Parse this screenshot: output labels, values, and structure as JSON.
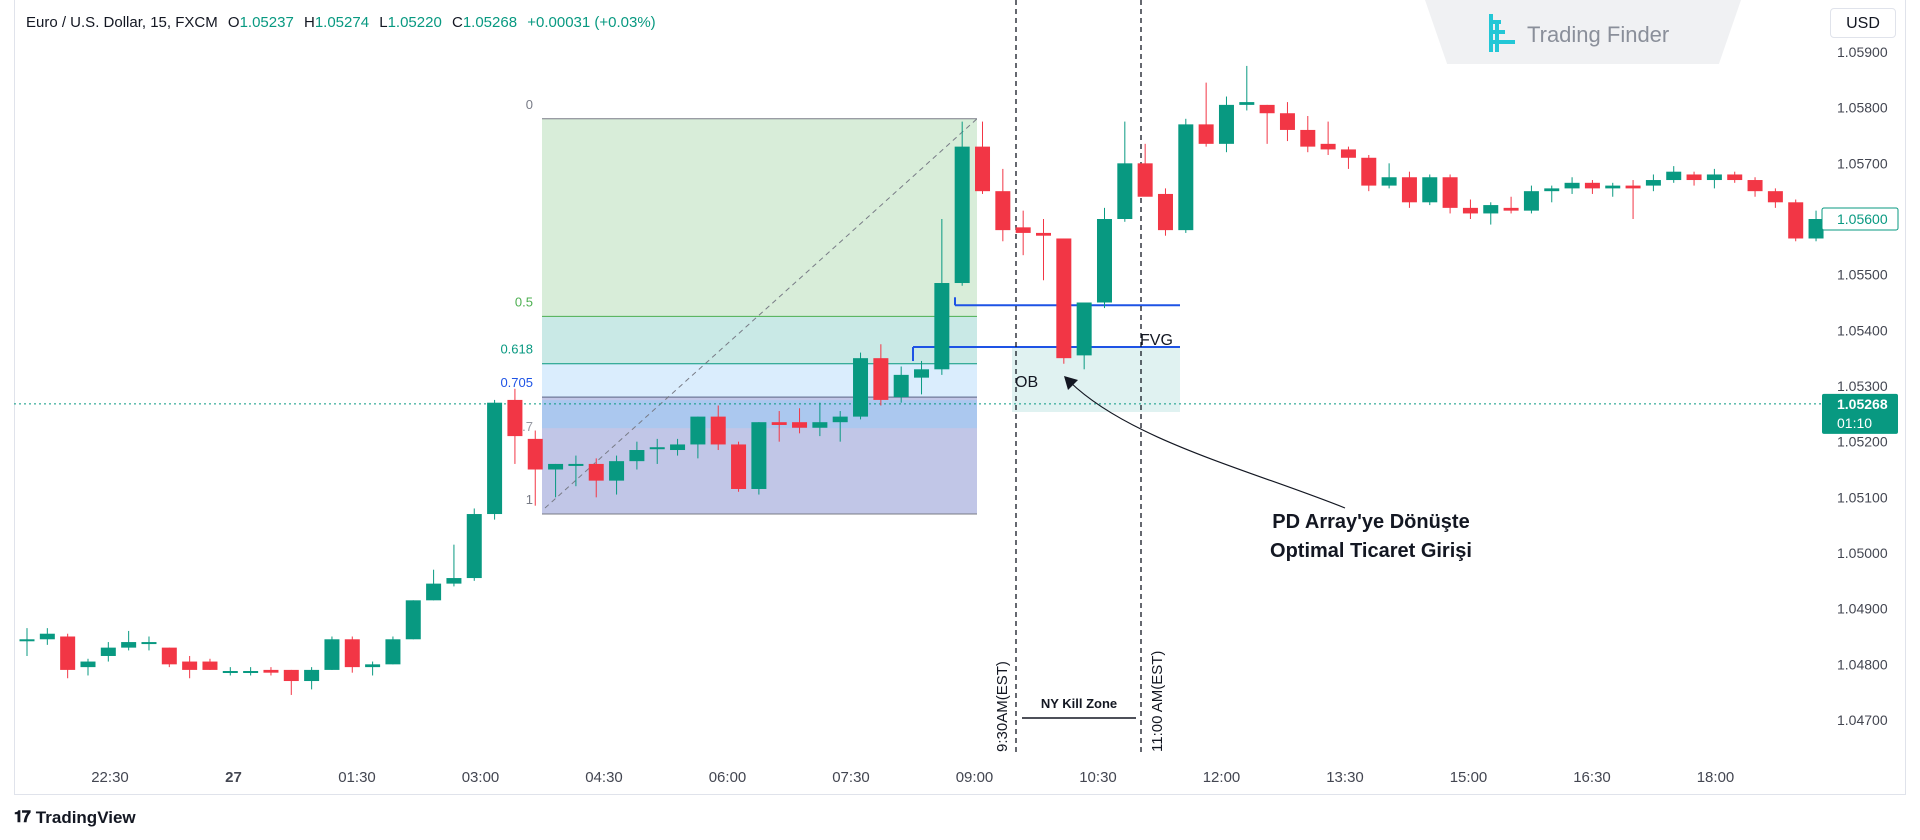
{
  "header": {
    "symbol": "Euro / U.S. Dollar, 15, FXCM",
    "o_label": "O",
    "o_value": "1.05237",
    "h_label": "H",
    "h_value": "1.05274",
    "l_label": "L",
    "l_value": "1.05220",
    "c_label": "C",
    "c_value": "1.05268",
    "change": "+0.00031 (+0.03%)"
  },
  "logo": {
    "text": "Trading Finder"
  },
  "currency_button": "USD",
  "footer": {
    "brand": "TradingView"
  },
  "colors": {
    "up": "#089981",
    "down": "#f23645",
    "fvg": "#1e53e5",
    "text": "#131722",
    "axis": "#434651"
  },
  "chart_data": {
    "type": "candlestick",
    "symbol": "EURUSD",
    "timeframe": "15",
    "ylim": [
      1.0465,
      1.0595
    ],
    "y_ticks": [
      "1.05900",
      "1.05800",
      "1.05700",
      "1.05600",
      "1.05500",
      "1.05400",
      "1.05300",
      "1.05200",
      "1.05100",
      "1.05000",
      "1.04900",
      "1.04800",
      "1.04700"
    ],
    "x_ticks": [
      "22:30",
      "27",
      "01:30",
      "03:00",
      "04:30",
      "06:00",
      "07:30",
      "09:00",
      "10:30",
      "12:00",
      "13:30",
      "15:00",
      "16:30",
      "18:00"
    ],
    "last_price": "1.05268",
    "countdown": "01:10",
    "marked_price": "1.05600",
    "candles": [
      {
        "o": 1.04845,
        "h": 1.04865,
        "l": 1.04815,
        "c": 1.04845
      },
      {
        "o": 1.04845,
        "h": 1.04865,
        "l": 1.04835,
        "c": 1.04855
      },
      {
        "o": 1.0485,
        "h": 1.04855,
        "l": 1.04775,
        "c": 1.0479
      },
      {
        "o": 1.04795,
        "h": 1.0481,
        "l": 1.0478,
        "c": 1.04805
      },
      {
        "o": 1.04815,
        "h": 1.0484,
        "l": 1.04805,
        "c": 1.0483
      },
      {
        "o": 1.0483,
        "h": 1.0486,
        "l": 1.04825,
        "c": 1.0484
      },
      {
        "o": 1.0484,
        "h": 1.0485,
        "l": 1.04825,
        "c": 1.0484
      },
      {
        "o": 1.0483,
        "h": 1.0483,
        "l": 1.04795,
        "c": 1.048
      },
      {
        "o": 1.04805,
        "h": 1.04815,
        "l": 1.04775,
        "c": 1.0479
      },
      {
        "o": 1.04805,
        "h": 1.0481,
        "l": 1.0479,
        "c": 1.0479
      },
      {
        "o": 1.04785,
        "h": 1.04795,
        "l": 1.0478,
        "c": 1.04788
      },
      {
        "o": 1.04786,
        "h": 1.04795,
        "l": 1.0478,
        "c": 1.04788
      },
      {
        "o": 1.0479,
        "h": 1.04795,
        "l": 1.0478,
        "c": 1.04785
      },
      {
        "o": 1.0479,
        "h": 1.0479,
        "l": 1.04745,
        "c": 1.0477
      },
      {
        "o": 1.0477,
        "h": 1.04795,
        "l": 1.04755,
        "c": 1.0479
      },
      {
        "o": 1.0479,
        "h": 1.0485,
        "l": 1.0479,
        "c": 1.04845
      },
      {
        "o": 1.04845,
        "h": 1.0485,
        "l": 1.04785,
        "c": 1.04795
      },
      {
        "o": 1.04795,
        "h": 1.04805,
        "l": 1.0478,
        "c": 1.048
      },
      {
        "o": 1.048,
        "h": 1.0485,
        "l": 1.048,
        "c": 1.04845
      },
      {
        "o": 1.04845,
        "h": 1.04915,
        "l": 1.04845,
        "c": 1.04915
      },
      {
        "o": 1.04915,
        "h": 1.0497,
        "l": 1.04915,
        "c": 1.04945
      },
      {
        "o": 1.04945,
        "h": 1.05015,
        "l": 1.0494,
        "c": 1.04955
      },
      {
        "o": 1.04955,
        "h": 1.0508,
        "l": 1.0495,
        "c": 1.0507
      },
      {
        "o": 1.0507,
        "h": 1.05275,
        "l": 1.0506,
        "c": 1.0527
      },
      {
        "o": 1.05275,
        "h": 1.05295,
        "l": 1.0516,
        "c": 1.0521
      },
      {
        "o": 1.05205,
        "h": 1.0522,
        "l": 1.05085,
        "c": 1.0515
      },
      {
        "o": 1.0515,
        "h": 1.0516,
        "l": 1.051,
        "c": 1.0516
      },
      {
        "o": 1.0516,
        "h": 1.05175,
        "l": 1.0512,
        "c": 1.0516
      },
      {
        "o": 1.0516,
        "h": 1.0517,
        "l": 1.051,
        "c": 1.0513
      },
      {
        "o": 1.0513,
        "h": 1.05175,
        "l": 1.05105,
        "c": 1.05165
      },
      {
        "o": 1.05165,
        "h": 1.052,
        "l": 1.0515,
        "c": 1.05185
      },
      {
        "o": 1.0519,
        "h": 1.05205,
        "l": 1.0516,
        "c": 1.0519
      },
      {
        "o": 1.05185,
        "h": 1.05205,
        "l": 1.05175,
        "c": 1.05195
      },
      {
        "o": 1.05195,
        "h": 1.05245,
        "l": 1.0517,
        "c": 1.05245
      },
      {
        "o": 1.05245,
        "h": 1.05265,
        "l": 1.05185,
        "c": 1.05195
      },
      {
        "o": 1.05195,
        "h": 1.052,
        "l": 1.0511,
        "c": 1.05115
      },
      {
        "o": 1.05115,
        "h": 1.05235,
        "l": 1.05105,
        "c": 1.05235
      },
      {
        "o": 1.05235,
        "h": 1.05255,
        "l": 1.052,
        "c": 1.0523
      },
      {
        "o": 1.05235,
        "h": 1.0526,
        "l": 1.05215,
        "c": 1.05225
      },
      {
        "o": 1.05225,
        "h": 1.0527,
        "l": 1.0521,
        "c": 1.05235
      },
      {
        "o": 1.05235,
        "h": 1.05255,
        "l": 1.052,
        "c": 1.05245
      },
      {
        "o": 1.05245,
        "h": 1.0536,
        "l": 1.0524,
        "c": 1.0535
      },
      {
        "o": 1.0535,
        "h": 1.05375,
        "l": 1.05265,
        "c": 1.05275
      },
      {
        "o": 1.0528,
        "h": 1.05335,
        "l": 1.0527,
        "c": 1.0532
      },
      {
        "o": 1.05315,
        "h": 1.05345,
        "l": 1.05285,
        "c": 1.0533
      },
      {
        "o": 1.0533,
        "h": 1.056,
        "l": 1.0532,
        "c": 1.05485
      },
      {
        "o": 1.05485,
        "h": 1.05775,
        "l": 1.0548,
        "c": 1.0573
      },
      {
        "o": 1.0573,
        "h": 1.05775,
        "l": 1.05645,
        "c": 1.0565
      },
      {
        "o": 1.0565,
        "h": 1.0569,
        "l": 1.0556,
        "c": 1.0558
      },
      {
        "o": 1.05585,
        "h": 1.05615,
        "l": 1.05535,
        "c": 1.05575
      },
      {
        "o": 1.05575,
        "h": 1.056,
        "l": 1.0549,
        "c": 1.0557
      },
      {
        "o": 1.05565,
        "h": 1.05565,
        "l": 1.0534,
        "c": 1.0535
      },
      {
        "o": 1.05355,
        "h": 1.0545,
        "l": 1.0533,
        "c": 1.0545
      },
      {
        "o": 1.0545,
        "h": 1.0562,
        "l": 1.0544,
        "c": 1.056
      },
      {
        "o": 1.056,
        "h": 1.05775,
        "l": 1.05595,
        "c": 1.057
      },
      {
        "o": 1.057,
        "h": 1.05735,
        "l": 1.0565,
        "c": 1.0564
      },
      {
        "o": 1.05645,
        "h": 1.05655,
        "l": 1.0557,
        "c": 1.0558
      },
      {
        "o": 1.0558,
        "h": 1.0578,
        "l": 1.05575,
        "c": 1.0577
      },
      {
        "o": 1.0577,
        "h": 1.05845,
        "l": 1.0573,
        "c": 1.05735
      },
      {
        "o": 1.05735,
        "h": 1.0582,
        "l": 1.0572,
        "c": 1.05805
      },
      {
        "o": 1.05805,
        "h": 1.05875,
        "l": 1.05795,
        "c": 1.0581
      },
      {
        "o": 1.05805,
        "h": 1.05805,
        "l": 1.05735,
        "c": 1.0579
      },
      {
        "o": 1.0579,
        "h": 1.0581,
        "l": 1.0574,
        "c": 1.0576
      },
      {
        "o": 1.0576,
        "h": 1.05785,
        "l": 1.0572,
        "c": 1.0573
      },
      {
        "o": 1.05735,
        "h": 1.05775,
        "l": 1.05715,
        "c": 1.05725
      },
      {
        "o": 1.05725,
        "h": 1.0573,
        "l": 1.0569,
        "c": 1.0571
      },
      {
        "o": 1.0571,
        "h": 1.05715,
        "l": 1.0565,
        "c": 1.0566
      },
      {
        "o": 1.0566,
        "h": 1.057,
        "l": 1.05655,
        "c": 1.05675
      },
      {
        "o": 1.05675,
        "h": 1.05685,
        "l": 1.0562,
        "c": 1.0563
      },
      {
        "o": 1.0563,
        "h": 1.0568,
        "l": 1.05625,
        "c": 1.05675
      },
      {
        "o": 1.05675,
        "h": 1.0568,
        "l": 1.0561,
        "c": 1.0562
      },
      {
        "o": 1.0562,
        "h": 1.05635,
        "l": 1.056,
        "c": 1.0561
      },
      {
        "o": 1.0561,
        "h": 1.0563,
        "l": 1.0559,
        "c": 1.05625
      },
      {
        "o": 1.0562,
        "h": 1.0564,
        "l": 1.0561,
        "c": 1.05615
      },
      {
        "o": 1.05615,
        "h": 1.0566,
        "l": 1.0561,
        "c": 1.0565
      },
      {
        "o": 1.0565,
        "h": 1.0566,
        "l": 1.0563,
        "c": 1.05655
      },
      {
        "o": 1.05655,
        "h": 1.05675,
        "l": 1.05645,
        "c": 1.05665
      },
      {
        "o": 1.05665,
        "h": 1.0567,
        "l": 1.05645,
        "c": 1.05655
      },
      {
        "o": 1.05655,
        "h": 1.05665,
        "l": 1.0564,
        "c": 1.0566
      },
      {
        "o": 1.0566,
        "h": 1.0567,
        "l": 1.056,
        "c": 1.05655
      },
      {
        "o": 1.0566,
        "h": 1.0568,
        "l": 1.0565,
        "c": 1.0567
      },
      {
        "o": 1.0567,
        "h": 1.05695,
        "l": 1.05665,
        "c": 1.05685
      },
      {
        "o": 1.0568,
        "h": 1.05685,
        "l": 1.0566,
        "c": 1.0567
      },
      {
        "o": 1.0567,
        "h": 1.0569,
        "l": 1.05655,
        "c": 1.0568
      },
      {
        "o": 1.0568,
        "h": 1.05685,
        "l": 1.05665,
        "c": 1.0567
      },
      {
        "o": 1.0567,
        "h": 1.05675,
        "l": 1.0564,
        "c": 1.0565
      },
      {
        "o": 1.0565,
        "h": 1.05655,
        "l": 1.0562,
        "c": 1.0563
      },
      {
        "o": 1.0563,
        "h": 1.05635,
        "l": 1.0556,
        "c": 1.05565
      },
      {
        "o": 1.05565,
        "h": 1.05615,
        "l": 1.0556,
        "c": 1.056
      }
    ],
    "fibonacci": {
      "levels": [
        {
          "label": "0",
          "price": 1.0578
        },
        {
          "label": "0.5",
          "price": 1.05425
        },
        {
          "label": "0.618",
          "price": 1.0534
        },
        {
          "label": "0.705",
          "price": 1.0528
        },
        {
          "label": "0.7",
          "price": 1.0528
        },
        {
          "label": "1",
          "price": 1.0507
        }
      ]
    },
    "annotations": {
      "fvg_label": "FVG",
      "ob_label": "OB",
      "fvg_top": 1.05445,
      "fvg_bottom": 1.0537,
      "callout_line1": "PD Array'ye Dönüşte",
      "callout_line2": "Optimal Ticaret Girişi",
      "session_start": "9:30AM(EST)",
      "session_end": "11:00 AM(EST)",
      "session_name": "NY Kill Zone"
    }
  }
}
